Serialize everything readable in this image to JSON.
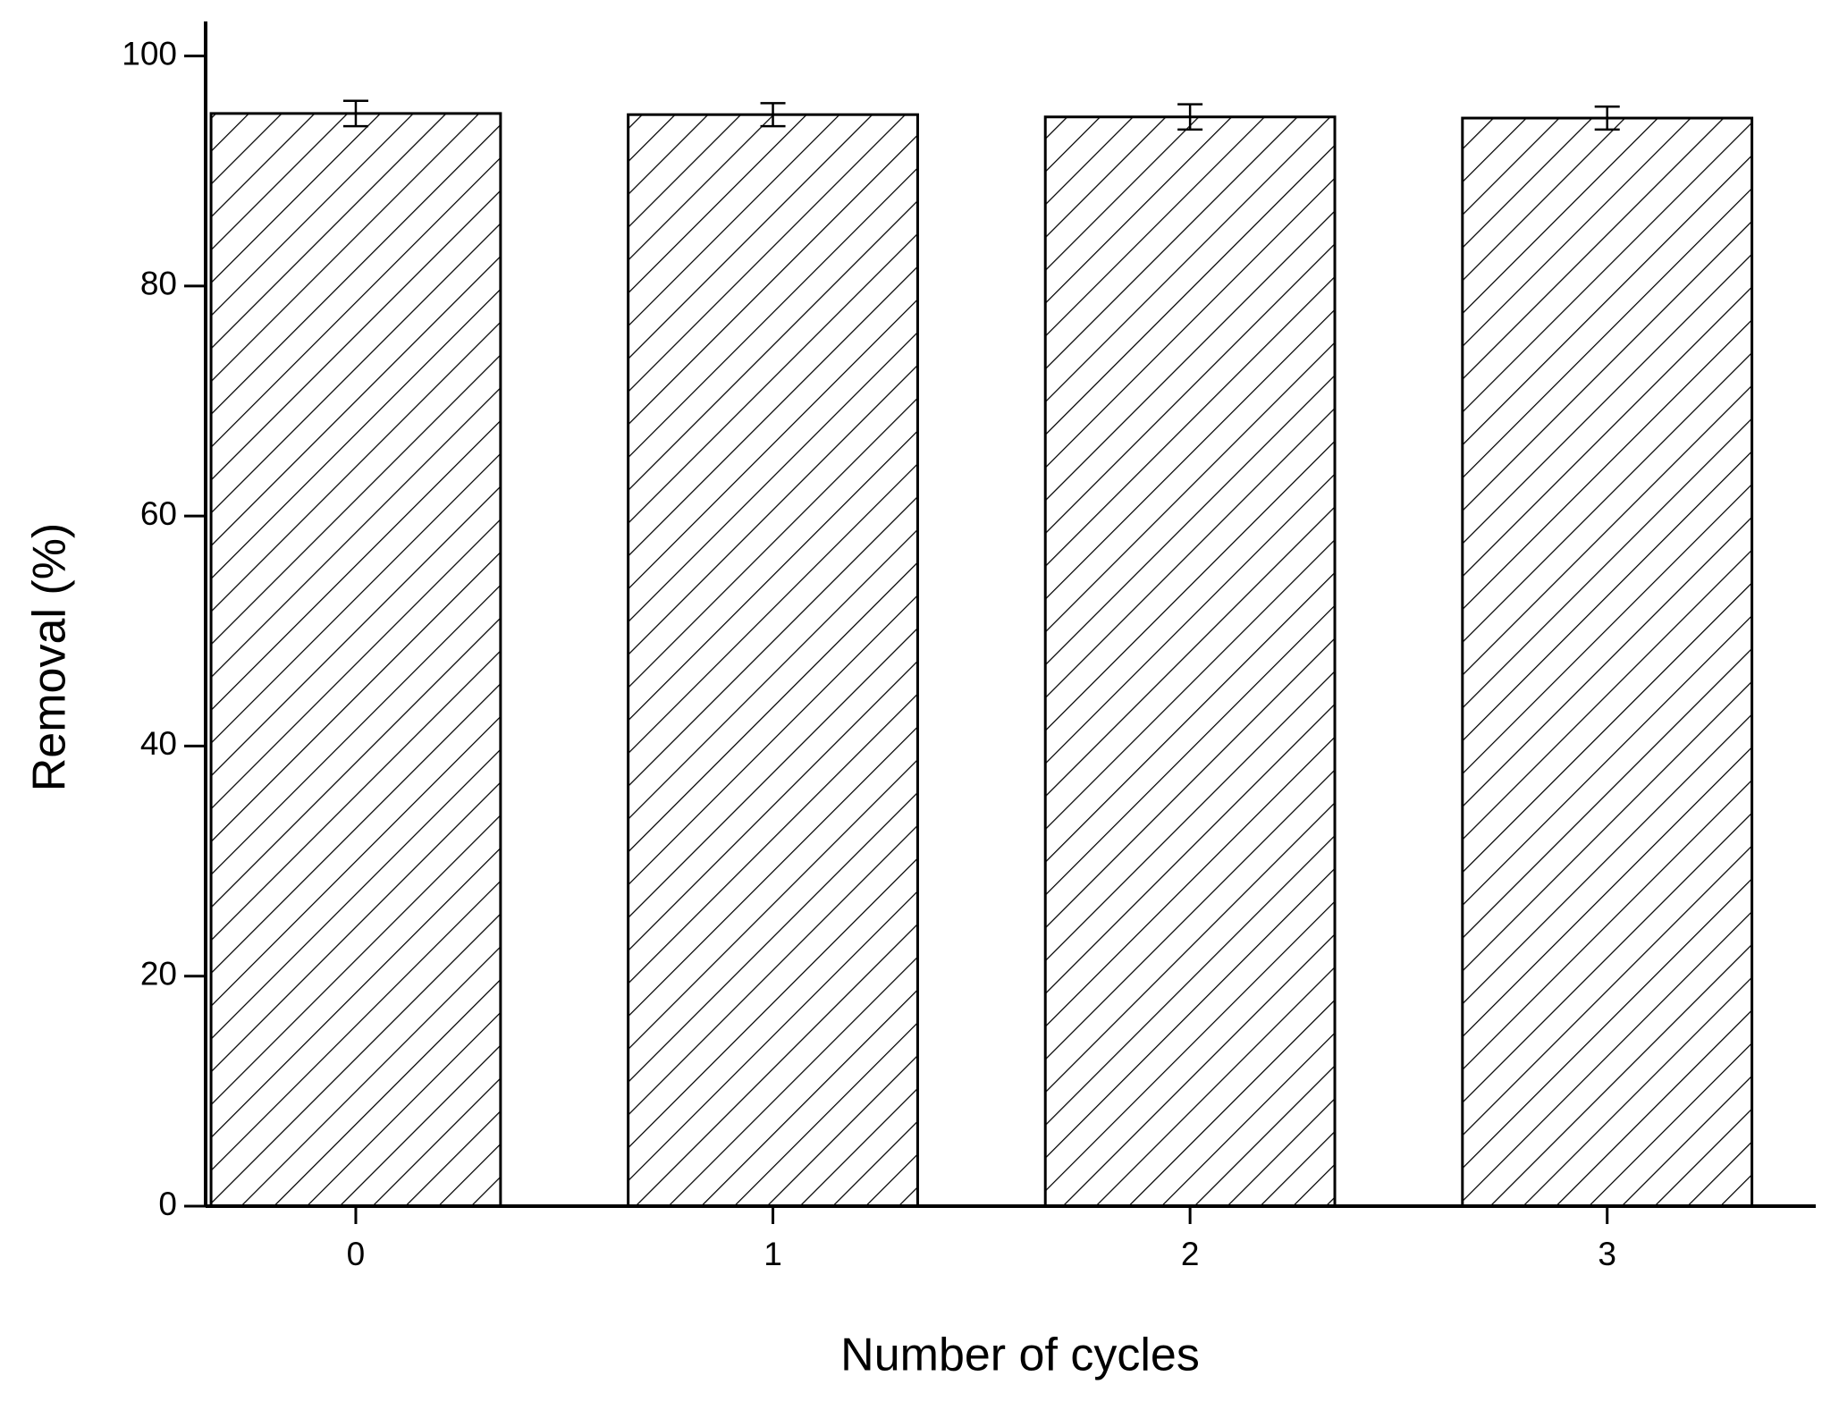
{
  "chart_data": {
    "type": "bar",
    "xlabel": "Number of cycles",
    "ylabel": "Removal (%)",
    "x": [
      0,
      1,
      2,
      3
    ],
    "values": [
      95.0,
      94.9,
      94.7,
      94.6
    ],
    "errors": [
      1.1,
      1.0,
      1.1,
      1.0
    ],
    "color": "#000000",
    "hatch": true,
    "xlim": [
      -0.36,
      3.5
    ],
    "xticks": [
      0,
      1,
      2,
      3
    ],
    "ylim": [
      0,
      103
    ],
    "yticks": [
      0,
      20,
      40,
      60,
      80,
      100
    ],
    "grid": false
  }
}
